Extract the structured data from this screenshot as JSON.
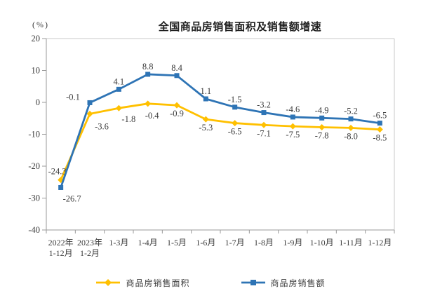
{
  "title": "全国商品房销售面积及销售额增速",
  "unit_label": "(%)",
  "chart_data": {
    "type": "line",
    "title": "全国商品房销售面积及销售额增速",
    "ylabel": "(%)",
    "xlabel": "",
    "ylim": [
      -40,
      20
    ],
    "yticks": [
      20,
      10,
      0,
      -10,
      -20,
      -30,
      -40
    ],
    "grid": false,
    "legend_position": "bottom",
    "categories": [
      "2022年\n1-12月",
      "2023年\n1-2月",
      "1-3月",
      "1-4月",
      "1-5月",
      "1-6月",
      "1-7月",
      "1-8月",
      "1-9月",
      "1-10月",
      "1-11月",
      "1-12月"
    ],
    "series": [
      {
        "name": "商品房销售面积",
        "color": "#FFC000",
        "marker": "diamond",
        "values": [
          -24.3,
          -3.6,
          -1.8,
          -0.4,
          -0.9,
          -5.3,
          -6.5,
          -7.1,
          -7.5,
          -7.8,
          -8.0,
          -8.5
        ],
        "labels": [
          "-24.3",
          "-3.6",
          "-1.8",
          "-0.4",
          "-0.9",
          "-5.3",
          "-6.5",
          "-7.1",
          "-7.5",
          "-7.8",
          "-8.0",
          "-8.5"
        ]
      },
      {
        "name": "商品房销售额",
        "color": "#2E74B5",
        "marker": "square",
        "values": [
          -26.7,
          -0.1,
          4.1,
          8.8,
          8.4,
          1.1,
          -1.5,
          -3.2,
          -4.6,
          -4.9,
          -5.2,
          -6.5
        ],
        "labels": [
          "-26.7",
          "-0.1",
          "4.1",
          "8.8",
          "8.4",
          "1.1",
          "-1.5",
          "-3.2",
          "-4.6",
          "-4.9",
          "-5.2",
          "-6.5"
        ]
      }
    ]
  }
}
